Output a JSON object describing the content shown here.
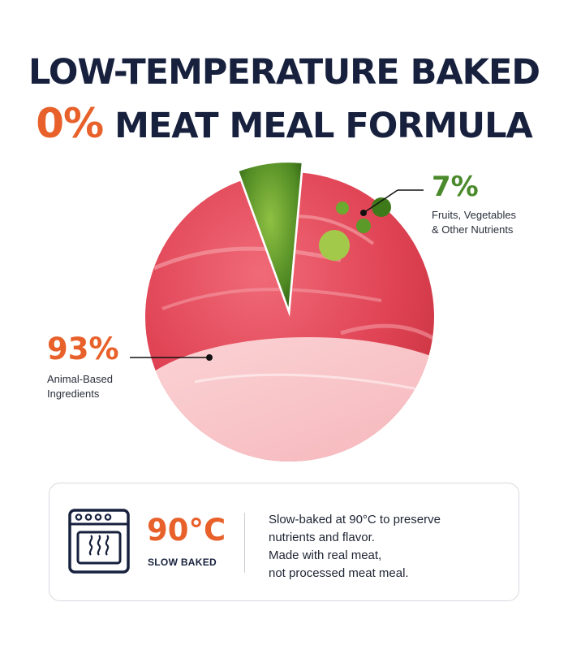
{
  "headline": {
    "line1": "LOW-TEMPERATURE BAKED",
    "line2_accent": "0%",
    "line2_rest": "MEAT MEAL FORMULA"
  },
  "chart_data": {
    "type": "pie",
    "slices": [
      {
        "label": "Animal-Based Ingredients",
        "value": 93,
        "display": "93%",
        "caption_lines": [
          "Animal-Based",
          "Ingredients"
        ]
      },
      {
        "label": "Fruits, Vegetables & Other Nutrients",
        "value": 7,
        "display": "7%",
        "caption_lines": [
          "Fruits, Vegetables",
          "& Other Nutrients"
        ]
      }
    ]
  },
  "colors": {
    "navy": "#17213d",
    "orange": "#e8602a",
    "green": "#4a8a2c"
  },
  "baking_card": {
    "icon": "oven-icon",
    "temperature": "90°C",
    "temperature_label": "SLOW BAKED",
    "description_lines": [
      "Slow-baked at 90°C to preserve",
      "nutrients and flavor.",
      "Made with real meat,",
      "not processed meat meal."
    ]
  }
}
